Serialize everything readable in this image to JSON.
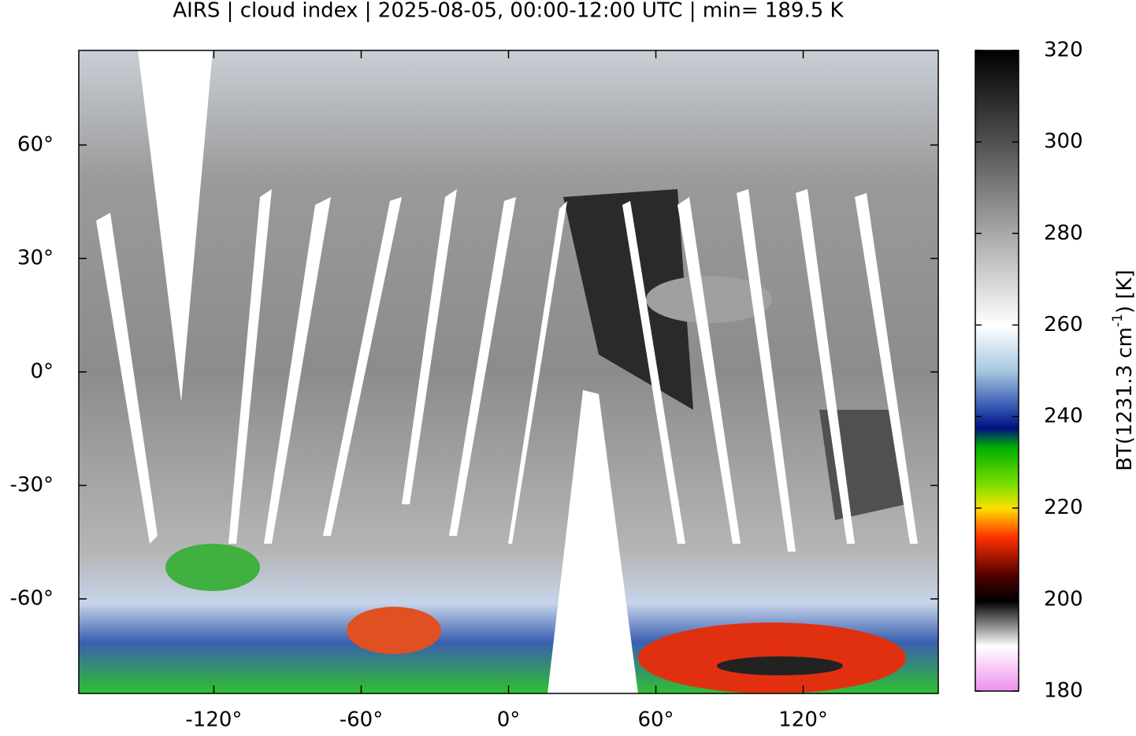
{
  "chart_data": {
    "type": "map",
    "title": "AIRS | cloud index | 2025-08-05, 00:00-12:00 UTC | min= 189.5 K",
    "xlim": [
      -175,
      175
    ],
    "ylim": [
      -85,
      85
    ],
    "xticks": [
      {
        "value": -120,
        "label": "-120°"
      },
      {
        "value": -60,
        "label": "-60°"
      },
      {
        "value": 0,
        "label": "0°"
      },
      {
        "value": 60,
        "label": "60°"
      },
      {
        "value": 120,
        "label": "120°"
      }
    ],
    "yticks": [
      {
        "value": 60,
        "label": "60°"
      },
      {
        "value": 30,
        "label": "30°"
      },
      {
        "value": 0,
        "label": "0°"
      },
      {
        "value": -30,
        "label": "-30°"
      },
      {
        "value": -60,
        "label": "-60°"
      }
    ],
    "colorbar": {
      "lim": [
        180,
        320
      ],
      "ticks": [
        180,
        200,
        220,
        240,
        260,
        280,
        300,
        320
      ],
      "label": {
        "main": "BT(1231.3 cm",
        "sup": "-1",
        "tail": ") [K]"
      }
    }
  }
}
